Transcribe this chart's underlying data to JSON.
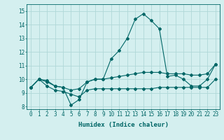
{
  "xlabel": "Humidex (Indice chaleur)",
  "ylabel": "",
  "background_color": "#d4efef",
  "grid_color": "#b0d8d8",
  "line_color": "#006666",
  "xlim": [
    -0.5,
    23.5
  ],
  "ylim": [
    7.8,
    15.5
  ],
  "xticks": [
    0,
    1,
    2,
    3,
    4,
    5,
    6,
    7,
    8,
    9,
    10,
    11,
    12,
    13,
    14,
    15,
    16,
    17,
    18,
    19,
    20,
    21,
    22,
    23
  ],
  "yticks": [
    8,
    9,
    10,
    11,
    12,
    13,
    14,
    15
  ],
  "series": [
    {
      "x": [
        0,
        1,
        2,
        3,
        4,
        5,
        6,
        7,
        8,
        9,
        10,
        11,
        12,
        13,
        14,
        15,
        16,
        17,
        18,
        19,
        20,
        21,
        22,
        23
      ],
      "y": [
        9.4,
        10.0,
        9.9,
        9.5,
        9.4,
        8.1,
        8.5,
        9.8,
        10.0,
        10.0,
        11.5,
        12.1,
        13.0,
        14.4,
        14.8,
        14.3,
        13.7,
        10.2,
        10.3,
        10.0,
        9.5,
        9.5,
        10.0,
        11.1
      ]
    },
    {
      "x": [
        0,
        1,
        2,
        3,
        4,
        5,
        6,
        7,
        8,
        9,
        10,
        11,
        12,
        13,
        14,
        15,
        16,
        17,
        18,
        19,
        20,
        21,
        22,
        23
      ],
      "y": [
        9.4,
        10.0,
        9.8,
        9.5,
        9.4,
        9.2,
        9.3,
        9.8,
        10.0,
        10.0,
        10.1,
        10.2,
        10.3,
        10.4,
        10.5,
        10.5,
        10.5,
        10.4,
        10.4,
        10.4,
        10.3,
        10.3,
        10.4,
        11.1
      ]
    },
    {
      "x": [
        0,
        1,
        2,
        3,
        4,
        5,
        6,
        7,
        8,
        9,
        10,
        11,
        12,
        13,
        14,
        15,
        16,
        17,
        18,
        19,
        20,
        21,
        22,
        23
      ],
      "y": [
        9.4,
        10.0,
        9.5,
        9.2,
        9.1,
        8.9,
        8.7,
        9.2,
        9.3,
        9.3,
        9.3,
        9.3,
        9.3,
        9.3,
        9.3,
        9.3,
        9.4,
        9.4,
        9.4,
        9.4,
        9.4,
        9.4,
        9.4,
        10.0
      ]
    }
  ],
  "marker": "D",
  "marker_size": 2.0,
  "line_width": 0.8,
  "axis_fontsize": 6.5,
  "tick_fontsize": 5.5
}
